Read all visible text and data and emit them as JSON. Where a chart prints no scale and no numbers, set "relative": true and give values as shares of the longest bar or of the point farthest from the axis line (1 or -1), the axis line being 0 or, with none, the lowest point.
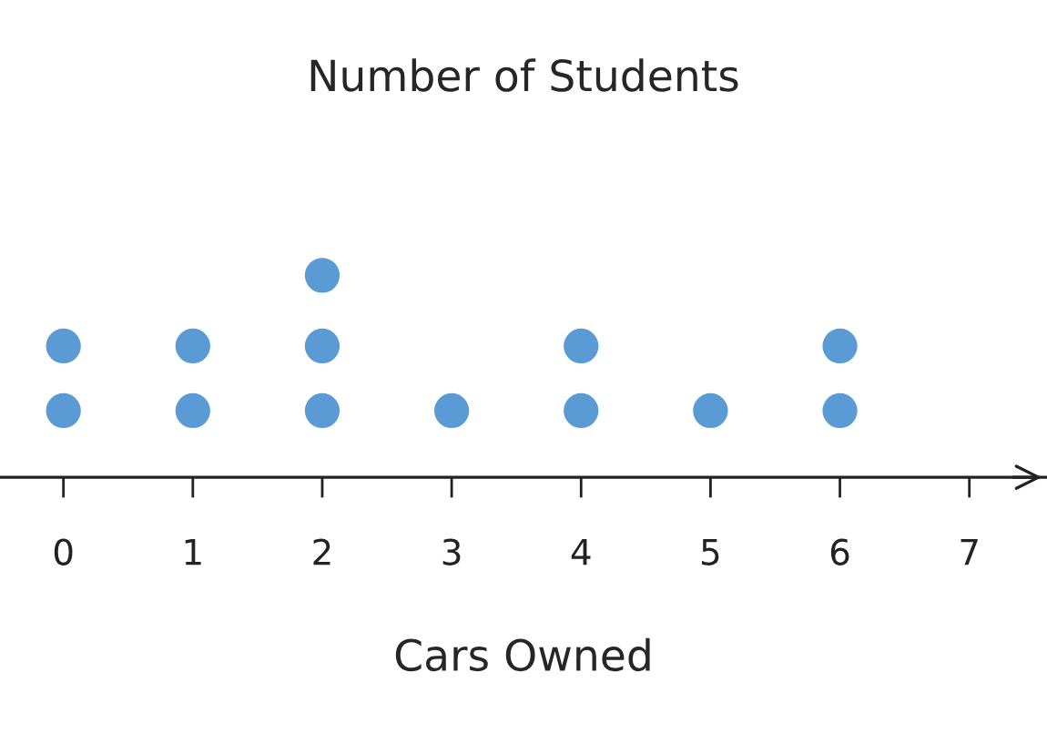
{
  "chart_data": {
    "type": "scatter",
    "title": "Number of Students",
    "xlabel": "Cars Owned",
    "relative": true,
    "x": [
      0,
      0,
      1,
      1,
      2,
      2,
      2,
      3,
      4,
      4,
      5,
      6,
      6
    ],
    "values": [
      0.33,
      0.65,
      0.33,
      0.65,
      0.33,
      0.65,
      1,
      0.33,
      0.33,
      0.65,
      0.33,
      0.33,
      0.65
    ],
    "color": "#5b9bd5",
    "marker": "circle",
    "xlim": [
      -0.49,
      7.6
    ],
    "xticks": [
      0,
      1,
      2,
      3,
      4,
      5,
      6,
      7
    ],
    "grid": false
  }
}
